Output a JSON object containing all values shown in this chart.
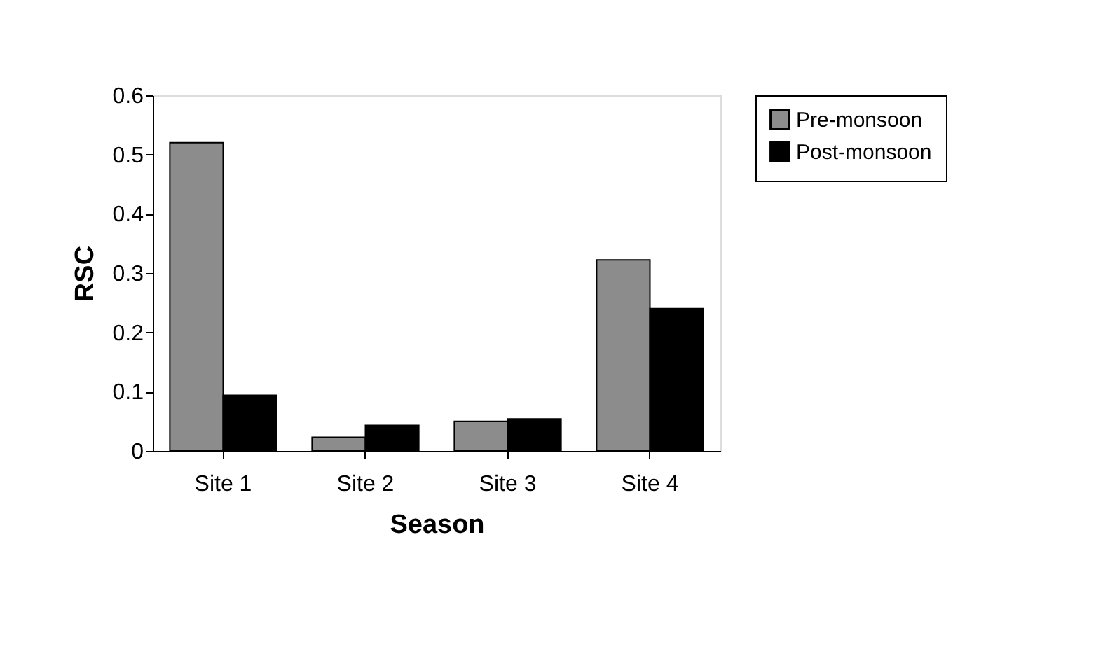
{
  "chart_data": {
    "type": "bar",
    "xlabel": "Season",
    "ylabel": "RSC",
    "categories": [
      "Site 1",
      "Site 2",
      "Site 3",
      "Site 4"
    ],
    "series": [
      {
        "name": "Pre-monsoon",
        "color": "#8c8c8c",
        "values": [
          0.52,
          0.023,
          0.05,
          0.322
        ]
      },
      {
        "name": "Post-monsoon",
        "color": "#000000",
        "values": [
          0.094,
          0.043,
          0.054,
          0.24
        ]
      }
    ],
    "ylim": [
      0,
      0.6
    ],
    "yticks": [
      0,
      0.1,
      0.2,
      0.3,
      0.4,
      0.5,
      0.6
    ],
    "grid": false,
    "legend": "right"
  }
}
